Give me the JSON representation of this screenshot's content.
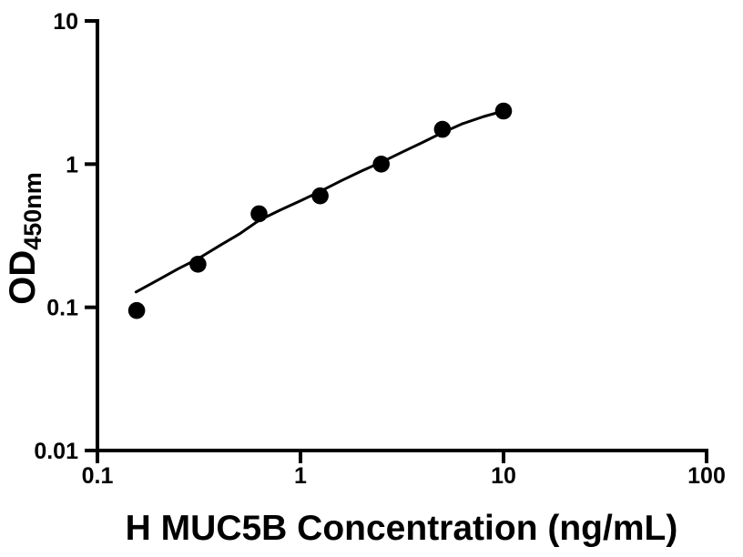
{
  "figure": {
    "background_color": "#ffffff",
    "foreground_color": "#000000"
  },
  "chart_data": {
    "type": "scatter",
    "title": "",
    "xlabel": "H MUC5B Concentration (ng/mL)",
    "ylabel_main": "OD",
    "ylabel_sub": "450nm",
    "x_scale": "log",
    "y_scale": "log",
    "xlim": [
      0.1,
      100
    ],
    "ylim": [
      0.01,
      10
    ],
    "grid": false,
    "legend": null,
    "axis_color": "#000000",
    "x_ticks": [
      {
        "value": 0.1,
        "label": "0.1"
      },
      {
        "value": 1,
        "label": "1"
      },
      {
        "value": 10,
        "label": "10"
      },
      {
        "value": 100,
        "label": "100"
      }
    ],
    "y_ticks": [
      {
        "value": 0.01,
        "label": "0.01"
      },
      {
        "value": 0.1,
        "label": "0.1"
      },
      {
        "value": 1,
        "label": "1"
      },
      {
        "value": 10,
        "label": "10"
      }
    ],
    "series": [
      {
        "name": "standard-points",
        "type": "scatter",
        "marker": "circle",
        "color": "#000000",
        "points": [
          {
            "x": 0.156,
            "y": 0.095
          },
          {
            "x": 0.3125,
            "y": 0.2
          },
          {
            "x": 0.625,
            "y": 0.45
          },
          {
            "x": 1.25,
            "y": 0.6
          },
          {
            "x": 2.5,
            "y": 1.0
          },
          {
            "x": 5,
            "y": 1.75
          },
          {
            "x": 10,
            "y": 2.35
          }
        ]
      },
      {
        "name": "fit-curve",
        "type": "line",
        "color": "#000000",
        "points": [
          {
            "x": 0.155,
            "y": 0.128
          },
          {
            "x": 0.2,
            "y": 0.156
          },
          {
            "x": 0.25,
            "y": 0.186
          },
          {
            "x": 0.3125,
            "y": 0.218
          },
          {
            "x": 0.4,
            "y": 0.27
          },
          {
            "x": 0.5,
            "y": 0.325
          },
          {
            "x": 0.625,
            "y": 0.405
          },
          {
            "x": 0.8,
            "y": 0.48
          },
          {
            "x": 1.0,
            "y": 0.555
          },
          {
            "x": 1.25,
            "y": 0.645
          },
          {
            "x": 1.6,
            "y": 0.77
          },
          {
            "x": 2.0,
            "y": 0.895
          },
          {
            "x": 2.5,
            "y": 1.03
          },
          {
            "x": 3.2,
            "y": 1.22
          },
          {
            "x": 4.0,
            "y": 1.42
          },
          {
            "x": 5.0,
            "y": 1.66
          },
          {
            "x": 6.3,
            "y": 1.92
          },
          {
            "x": 8.0,
            "y": 2.15
          },
          {
            "x": 10.0,
            "y": 2.35
          }
        ]
      }
    ]
  }
}
